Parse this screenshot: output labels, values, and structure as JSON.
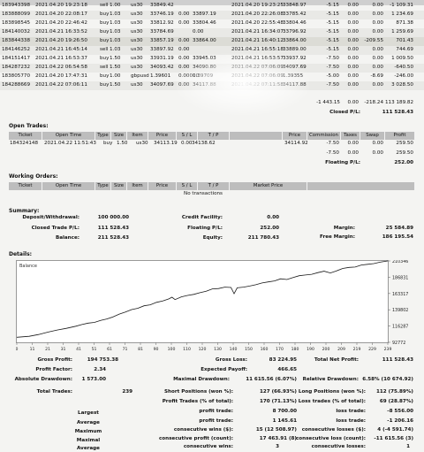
{
  "closed_trades": [
    {
      "ticket": "183943398",
      "time": "2021.04.20 19:23:18",
      "type": "sell",
      "size": "1.00",
      "item": "us30",
      "price": "33849.42",
      "sl": "",
      "tp": "",
      "ctime": "2021.04.20 19:23:25",
      "cprice": "33848.97",
      "comm": "-5.15",
      "taxes": "0.00",
      "swap": "0.00",
      "profit": "-1 109.31"
    },
    {
      "ticket": "183888099",
      "time": "2021.04.20 22:08:17",
      "type": "buy",
      "size": "1.03",
      "item": "us30",
      "price": "33746.19",
      "sl": "0.00",
      "tp": "33897.19",
      "ctime": "2021.04.20 22:26:08",
      "cprice": "33785.42",
      "comm": "-5.15",
      "taxes": "0.00",
      "swap": "0.00",
      "profit": "1 234.69"
    },
    {
      "ticket": "183898545",
      "time": "2021.04.20 22:46:42",
      "type": "buy",
      "size": "1.03",
      "item": "us30",
      "price": "33812.92",
      "sl": "0.00",
      "tp": "33804.46",
      "ctime": "2021.04.20 22:55:48",
      "cprice": "33804.46",
      "comm": "-5.15",
      "taxes": "0.00",
      "swap": "0.00",
      "profit": "871.38"
    },
    {
      "ticket": "184140032",
      "time": "2021.04.21 16:33:52",
      "type": "buy",
      "size": "1.03",
      "item": "us30",
      "price": "33784.69",
      "sl": "",
      "tp": "0.00",
      "ctime": "2021.04.21 16:34:07",
      "cprice": "33796.92",
      "comm": "-5.15",
      "taxes": "0.00",
      "swap": "0.00",
      "profit": "1 259.69"
    },
    {
      "ticket": "183844338",
      "time": "2021.04.20 19:26:50",
      "type": "buy",
      "size": "1.03",
      "item": "us30",
      "price": "33857.19",
      "sl": "0.00",
      "tp": "33864.00",
      "ctime": "2021.04.21 16:40:12",
      "cprice": "33864.00",
      "comm": "-5.15",
      "taxes": "0.00",
      "swap": "-209.55",
      "profit": "701.43"
    },
    {
      "ticket": "184146252",
      "time": "2021.04.21 16:45:14",
      "type": "sell",
      "size": "1.03",
      "item": "us30",
      "price": "33897.92",
      "sl": "0.00",
      "tp": "",
      "ctime": "2021.04.21 16:55:18",
      "cprice": "33889.00",
      "comm": "-5.15",
      "taxes": "0.00",
      "swap": "0.00",
      "profit": "744.69"
    },
    {
      "ticket": "184151417",
      "time": "2021.04.21 16:53:37",
      "type": "buy",
      "size": "1.50",
      "item": "us30",
      "price": "33931.19",
      "sl": "0.00",
      "tp": "33945.03",
      "ctime": "2021.04.21 16:53:57",
      "cprice": "33937.92",
      "comm": "-7.50",
      "taxes": "0.00",
      "swap": "0.00",
      "profit": "1 009.50"
    },
    {
      "ticket": "184287232",
      "time": "2021.04.22 06:54:58",
      "type": "sell",
      "size": "1.50",
      "item": "us30",
      "price": "34093.42",
      "sl": "0.00",
      "tp": "34090.80",
      "ctime": "2021.04.22 07:06:09",
      "cprice": "34097.69",
      "comm": "-7.50",
      "taxes": "0.00",
      "swap": "0.00",
      "profit": "-640.50"
    },
    {
      "ticket": "183805770",
      "time": "2021.04.20 17:47:31",
      "type": "buy",
      "size": "1.00",
      "item": "gbpusd",
      "price": "1.39601",
      "sl": "0.00000",
      "tp": "1.39709",
      "ctime": "2021.04.22 07:06:09",
      "cprice": "1.39355",
      "comm": "-5.00",
      "taxes": "0.00",
      "swap": "-8.69",
      "profit": "-246.00"
    },
    {
      "ticket": "184288669",
      "time": "2021.04.22 07:06:11",
      "type": "buy",
      "size": "1.50",
      "item": "us30",
      "price": "34097.69",
      "sl": "0.00",
      "tp": "34117.88",
      "ctime": "2021.04.22 07:11:58",
      "cprice": "34117.88",
      "comm": "-7.50",
      "taxes": "0.00",
      "swap": "0.00",
      "profit": "3 028.50"
    }
  ],
  "closed_totals": {
    "comm": "-1 443.15",
    "taxes": "0.00",
    "swap": "-218.24",
    "profit": "113 189.82"
  },
  "closed_pl": {
    "label": "Closed P/L:",
    "value": "111 528.43"
  },
  "open_trades": {
    "title": "Open Trades:",
    "headers": [
      "Ticket",
      "Open Time",
      "Type",
      "Size",
      "Item",
      "Price",
      "S / L",
      "T / P",
      "",
      "Price",
      "Commission",
      "Taxes",
      "Swap",
      "Profit"
    ],
    "row": {
      "ticket": "184324148",
      "time": "2021.04.22 11:51:43",
      "type": "buy",
      "size": "1.50",
      "item": "us30",
      "price": "34113.19",
      "sl": "0.00",
      "tp": "34138.62",
      "cprice": "34114.92",
      "comm": "-7.50",
      "taxes": "0.00",
      "swap": "0.00",
      "profit": "259.50"
    },
    "sub": {
      "comm": "-7.50",
      "taxes": "0.00",
      "swap": "0.00",
      "profit": "259.50"
    },
    "floating_label": "Floating P/L:",
    "floating_value": "252.00"
  },
  "working_orders": {
    "title": "Working Orders:",
    "headers": [
      "Ticket",
      "Open Time",
      "Type",
      "Size",
      "Item",
      "Price",
      "S / L",
      "T / P",
      "Market Price"
    ],
    "empty": "No transactions"
  },
  "summary": {
    "title": "Summary:",
    "deposit_label": "Deposit/Withdrawal:",
    "deposit_value": "100 000.00",
    "closed_label": "Closed Trade P/L:",
    "closed_value": "111 528.43",
    "balance_label": "Balance:",
    "balance_value": "211 528.43",
    "credit_label": "Credit Facility:",
    "credit_value": "0.00",
    "floating_label": "Floating P/L:",
    "floating_value": "252.00",
    "equity_label": "Equity:",
    "equity_value": "211 780.43",
    "margin_label": "Margin:",
    "margin_value": "25 584.89",
    "free_label": "Free Margin:",
    "free_value": "186 195.54"
  },
  "details_title": "Details:",
  "chart_data": {
    "type": "line",
    "title": "Balance",
    "x_ticks": [
      "0",
      "11",
      "21",
      "31",
      "41",
      "51",
      "61",
      "71",
      "81",
      "90",
      "100",
      "110",
      "120",
      "130",
      "140",
      "150",
      "160",
      "170",
      "180",
      "190",
      "200",
      "209",
      "219",
      "229",
      "239"
    ],
    "y_ticks": [
      "210346",
      "186831",
      "163317",
      "139802",
      "116287",
      "92772"
    ],
    "ylim": [
      92772,
      210346
    ],
    "xlim": [
      0,
      239
    ],
    "x": [
      0,
      8,
      14,
      20,
      26,
      32,
      38,
      42,
      46,
      50,
      54,
      58,
      62,
      66,
      70,
      74,
      78,
      82,
      86,
      90,
      94,
      98,
      100,
      102,
      106,
      110,
      114,
      118,
      122,
      126,
      130,
      134,
      138,
      140,
      142,
      146,
      150,
      154,
      158,
      162,
      166,
      170,
      174,
      178,
      182,
      186,
      190,
      194,
      198,
      202,
      206,
      210,
      214,
      218,
      222,
      226,
      230,
      234,
      239
    ],
    "values": [
      100000,
      101500,
      104000,
      107500,
      110500,
      113000,
      116000,
      118500,
      120500,
      121500,
      124500,
      126500,
      129500,
      133500,
      136500,
      140000,
      142000,
      145500,
      147000,
      150500,
      152500,
      155500,
      158000,
      154500,
      158500,
      160500,
      162000,
      164500,
      166500,
      170000,
      170500,
      172500,
      172000,
      163000,
      171500,
      172500,
      174000,
      176000,
      178500,
      180000,
      181500,
      184500,
      183500,
      186500,
      189000,
      190000,
      191000,
      193500,
      195500,
      193000,
      196000,
      199500,
      201000,
      201500,
      204500,
      205500,
      206500,
      208500,
      210346
    ]
  },
  "stats": {
    "gross_profit_label": "Gross Profit:",
    "gross_profit": "194 753.38",
    "gross_loss_label": "Gross Loss:",
    "gross_loss": "83 224.95",
    "net_label": "Total Net Profit:",
    "net": "111 528.43",
    "pf_label": "Profit Factor:",
    "pf": "2.34",
    "payoff_label": "Expected Payoff:",
    "payoff": "466.65",
    "abs_dd_label": "Absolute Drawdown:",
    "abs_dd": "1 573.00",
    "max_dd_label": "Maximal Drawdown:",
    "max_dd": "11 615.56 (6.07%)",
    "rel_dd_label": "Relative Drawdown:",
    "rel_dd": "6.58% (10 674.92)",
    "total_label": "Total Trades:",
    "total": "239",
    "short_label": "Short Positions (won %):",
    "short": "127 (66.93%)",
    "long_label": "Long Positions (won %):",
    "long": "112 (75.89%)",
    "ptrades_label": "Profit Trades (% of total):",
    "ptrades": "170 (71.13%)",
    "ltrades_label": "Loss trades (% of total):",
    "ltrades": "69 (28.87%)",
    "largest": "Largest",
    "largest_pt_label": "profit trade:",
    "largest_pt": "8 700.00",
    "largest_lt_label": "loss trade:",
    "largest_lt": "-8 556.00",
    "average": "Average",
    "avg_pt_label": "profit trade:",
    "avg_pt": "1 145.61",
    "avg_lt_label": "loss trade:",
    "avg_lt": "-1 206.16",
    "maximum": "Maximum",
    "max_cw_label": "consecutive wins ($):",
    "max_cw": "15 (12 508.97)",
    "max_cl_label": "consecutive losses ($):",
    "max_cl": "4 (-4 591.74)",
    "maximal": "Maximal",
    "mxl_cp_label": "consecutive profit (count):",
    "mxl_cp": "17 463.91 (8)",
    "mxl_cl_label": "consecutive loss (count):",
    "mxl_cl": "-11 615.56 (3)",
    "average2": "Average",
    "avg_cw_label": "consecutive wins:",
    "avg_cw": "3",
    "avg_cl_label": "consecutive losses:",
    "avg_cl": "1"
  }
}
